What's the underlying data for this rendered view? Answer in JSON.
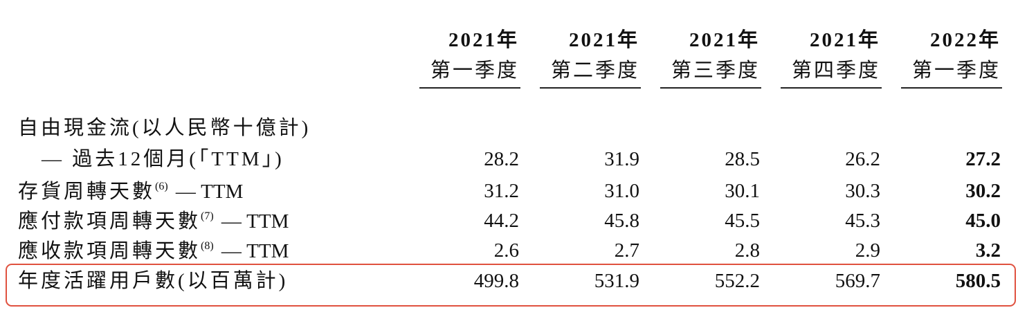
{
  "table": {
    "columns": [
      {
        "year": "2021年",
        "quarter": "第一季度"
      },
      {
        "year": "2021年",
        "quarter": "第二季度"
      },
      {
        "year": "2021年",
        "quarter": "第三季度"
      },
      {
        "year": "2021年",
        "quarter": "第四季度"
      },
      {
        "year": "2022年",
        "quarter": "第一季度"
      }
    ],
    "rows": [
      {
        "label": "自由現金流(以人民幣十億計)",
        "sublabel": "— 過去12個月(「TTM」)",
        "values": [
          "28.2",
          "31.9",
          "28.5",
          "26.2",
          "27.2"
        ]
      },
      {
        "label": "存貨周轉天數",
        "note": "(6)",
        "suffix": "— TTM",
        "values": [
          "31.2",
          "31.0",
          "30.1",
          "30.3",
          "30.2"
        ]
      },
      {
        "label": "應付款項周轉天數",
        "note": "(7)",
        "suffix": "— TTM",
        "values": [
          "44.2",
          "45.8",
          "45.5",
          "45.3",
          "45.0"
        ]
      },
      {
        "label": "應收款項周轉天數",
        "note": "(8)",
        "suffix": "— TTM",
        "values": [
          "2.6",
          "2.7",
          "2.8",
          "2.9",
          "3.2"
        ]
      },
      {
        "label": "年度活躍用戶數(以百萬計)",
        "values": [
          "499.8",
          "531.9",
          "552.2",
          "569.7",
          "580.5"
        ],
        "highlighted": true
      }
    ]
  }
}
